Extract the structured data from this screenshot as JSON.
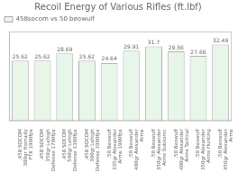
{
  "chart_data": {
    "type": "bar",
    "title": "Recoil Energy of Various Rifles (ft.lbf)",
    "categories": [
      ".458 SOCOM\n300gr Hornady\nFTX 1900fps",
      ".458 SOCOM\n350gr Lehigh\nDefense 1700fps",
      ".458 SOCOM\n500gr Lehigh\nDefense 1300fps",
      ".458 SOCOM\n300gr Lehigh\nDefense 1900fps",
      ".50 Beowulf\n335gr Alexander\nArms 1900fps",
      ".50 Beowulf\n400gr Alexander\nArms",
      ".50 Beowulf\n350gr Alexander\nArms Subsonic",
      ".50 Beowulf\n400gr Alexander\nArms Tactical",
      ".50 Beowulf\n350gr Alexander\nArms Hunting",
      ".50 Beowulf\n450gr Alexander\nArms"
    ],
    "series": [
      {
        "name": "458socom vs 50 beowulf",
        "color": "#e8f5e9",
        "values": [
          25.62,
          25.62,
          28.69,
          25.62,
          24.64,
          29.91,
          31.7,
          29.56,
          27.66,
          32.49
        ]
      }
    ],
    "ylim": [
      0,
      38
    ],
    "grid": false,
    "legend": "upper left",
    "data_labels": true,
    "tick_labels": "x"
  }
}
